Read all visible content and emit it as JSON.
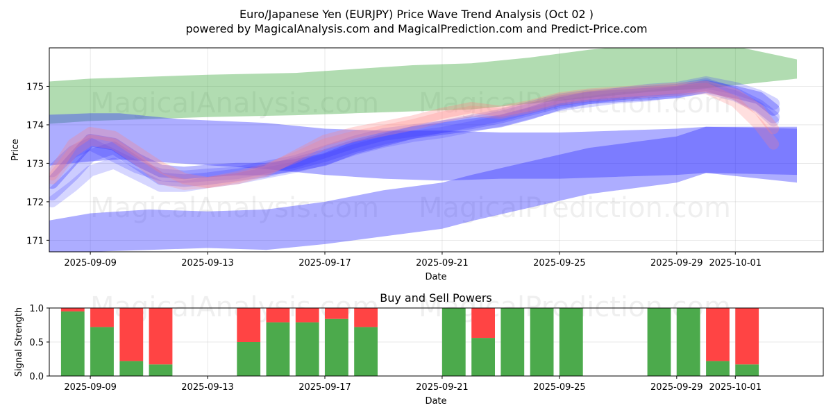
{
  "title_line1": "Euro/Japanese Yen (EURJPY) Price Wave Trend Analysis (Oct 02 )",
  "title_line2": "powered by MagicalAnalysis.com and MagicalPrediction.com and Predict-Price.com",
  "watermarks": [
    "MagicalAnalysis.com",
    "MagicalPrediction.com"
  ],
  "colors": {
    "green": "#2ca02c",
    "blue": "#3333ff",
    "pink": "#ffaaaa",
    "buy": "#4caa4c",
    "sell": "#ff4444"
  },
  "chart_data": [
    {
      "type": "area",
      "title": "",
      "xlabel": "Date",
      "ylabel": "Price",
      "x_range_days": [
        -1.4,
        25.0
      ],
      "ylim": [
        170.7,
        176.0
      ],
      "x_ticks": [
        {
          "day": 0,
          "label": "2025-09-09"
        },
        {
          "day": 4,
          "label": "2025-09-13"
        },
        {
          "day": 8,
          "label": "2025-09-17"
        },
        {
          "day": 12,
          "label": "2025-09-21"
        },
        {
          "day": 16,
          "label": "2025-09-25"
        },
        {
          "day": 20,
          "label": "2025-09-29"
        },
        {
          "day": 22,
          "label": "2025-10-01"
        }
      ],
      "y_ticks": [
        171,
        172,
        173,
        174,
        175
      ],
      "bands": [
        {
          "name": "green-upper-band",
          "color": "#2ca02c",
          "opacity": 0.37,
          "x": [
            -1.9,
            0,
            2,
            4,
            7,
            9,
            11,
            13,
            15,
            17,
            19,
            21,
            24.1
          ],
          "upper": [
            175.1,
            175.2,
            175.25,
            175.3,
            175.35,
            175.45,
            175.55,
            175.6,
            175.75,
            175.95,
            176.1,
            176.2,
            175.7
          ],
          "lower": [
            174.0,
            174.1,
            174.15,
            174.2,
            174.25,
            174.3,
            174.35,
            174.4,
            174.55,
            174.7,
            174.85,
            174.95,
            175.2
          ]
        },
        {
          "name": "blue-middle-band",
          "color": "#3333ff",
          "opacity": 0.4,
          "x": [
            -1.9,
            0,
            1,
            3,
            6,
            8,
            10,
            12,
            14,
            16,
            18,
            20,
            21,
            24.1
          ],
          "upper": [
            174.25,
            174.3,
            174.3,
            174.15,
            174.05,
            173.9,
            173.85,
            173.85,
            173.8,
            173.8,
            173.85,
            173.9,
            173.95,
            173.95
          ],
          "lower": [
            172.9,
            173.05,
            173.1,
            173.0,
            172.85,
            172.7,
            172.6,
            172.55,
            172.6,
            172.6,
            172.65,
            172.7,
            172.75,
            172.7
          ]
        },
        {
          "name": "blue-lower-band",
          "color": "#3333ff",
          "opacity": 0.4,
          "x": [
            -1.9,
            0,
            2,
            4,
            6,
            8,
            10,
            12,
            13,
            15,
            17,
            20,
            21,
            24.1
          ],
          "upper": [
            171.45,
            171.7,
            171.8,
            171.75,
            171.8,
            172.0,
            172.3,
            172.5,
            172.7,
            173.05,
            173.4,
            173.7,
            173.95,
            173.9
          ],
          "lower": [
            170.6,
            170.7,
            170.75,
            170.8,
            170.75,
            170.9,
            171.1,
            171.3,
            171.5,
            171.85,
            172.2,
            172.5,
            172.75,
            172.5
          ]
        }
      ],
      "wave_lines": [
        {
          "name": "blue-wave-main",
          "color": "#3333ff",
          "opacity": 0.35,
          "width": 18,
          "x": [
            -1.3,
            -0.6,
            0,
            0.8,
            1.6,
            2.4,
            3.2,
            4,
            5,
            6,
            7,
            8,
            9,
            10,
            11,
            12,
            13,
            14,
            15,
            16,
            17,
            18,
            19,
            20,
            21,
            22,
            22.8,
            23.3
          ],
          "y": [
            172.5,
            173.1,
            173.6,
            173.5,
            173.1,
            172.8,
            172.75,
            172.8,
            172.85,
            172.85,
            172.95,
            173.1,
            173.4,
            173.6,
            173.8,
            173.9,
            174.0,
            174.1,
            174.3,
            174.55,
            174.7,
            174.75,
            174.8,
            174.85,
            175.0,
            174.85,
            174.7,
            174.4
          ]
        },
        {
          "name": "blue-wave-2",
          "color": "#3333ff",
          "opacity": 0.25,
          "width": 18,
          "x": [
            -1.3,
            -0.6,
            0,
            0.8,
            1.6,
            2.4,
            3.2,
            4,
            5,
            6,
            7,
            8,
            9,
            10,
            11,
            12,
            13,
            14,
            15,
            16,
            17,
            18,
            19,
            20,
            21,
            22,
            22.8,
            23.3
          ],
          "y": [
            172.2,
            172.7,
            173.2,
            173.4,
            173.0,
            172.6,
            172.55,
            172.6,
            172.7,
            172.8,
            173.0,
            173.2,
            173.45,
            173.65,
            173.8,
            173.95,
            174.05,
            174.2,
            174.4,
            174.6,
            174.7,
            174.8,
            174.85,
            174.9,
            175.05,
            174.8,
            174.5,
            174.2
          ]
        },
        {
          "name": "blue-wave-3",
          "color": "#3333ff",
          "opacity": 0.22,
          "width": 18,
          "x": [
            -1.3,
            -0.6,
            0,
            0.8,
            1.6,
            2.4,
            3.2,
            4,
            5,
            6,
            7,
            8,
            9,
            10,
            11,
            12,
            13,
            14,
            15,
            16,
            17,
            18,
            19,
            20,
            21,
            22,
            22.8,
            23.3
          ],
          "y": [
            172.8,
            173.3,
            173.5,
            173.2,
            172.9,
            172.7,
            172.65,
            172.7,
            172.75,
            172.9,
            173.05,
            173.3,
            173.55,
            173.75,
            173.85,
            173.95,
            174.1,
            174.25,
            174.45,
            174.65,
            174.75,
            174.8,
            174.9,
            174.95,
            175.1,
            174.95,
            174.75,
            174.55
          ]
        },
        {
          "name": "blue-wave-4",
          "color": "#3333ff",
          "opacity": 0.2,
          "width": 16,
          "x": [
            -1.3,
            -0.6,
            0,
            0.8,
            1.6,
            2.4,
            3.2,
            4,
            5,
            6,
            7,
            8,
            9,
            10,
            11,
            12,
            13,
            14,
            15,
            16,
            17,
            18,
            19,
            20,
            21,
            22,
            22.8,
            23.3
          ],
          "y": [
            172.0,
            172.4,
            172.8,
            173.0,
            172.7,
            172.4,
            172.4,
            172.5,
            172.6,
            172.75,
            172.9,
            173.1,
            173.35,
            173.55,
            173.7,
            173.8,
            173.95,
            174.1,
            174.3,
            174.5,
            174.6,
            174.7,
            174.75,
            174.85,
            174.95,
            174.75,
            174.45,
            174.1
          ]
        },
        {
          "name": "pink-wave-1",
          "color": "#ff8080",
          "opacity": 0.3,
          "width": 16,
          "x": [
            -1.3,
            -0.6,
            0,
            0.8,
            1.6,
            2.4,
            3.2,
            4,
            5,
            6,
            7,
            8,
            9,
            10,
            11,
            12,
            13,
            14,
            15,
            16,
            17,
            18,
            19,
            20,
            21,
            22,
            22.8,
            23.3
          ],
          "y": [
            172.7,
            173.5,
            173.8,
            173.7,
            173.3,
            172.9,
            172.6,
            172.5,
            172.6,
            172.8,
            173.2,
            173.6,
            173.8,
            173.95,
            174.1,
            174.3,
            174.45,
            174.35,
            174.5,
            174.7,
            174.8,
            174.85,
            174.9,
            174.95,
            175.0,
            174.8,
            174.4,
            173.9
          ]
        },
        {
          "name": "pink-wave-2",
          "color": "#ff8080",
          "opacity": 0.25,
          "width": 16,
          "x": [
            -1.3,
            -0.6,
            0,
            0.8,
            1.6,
            2.4,
            3.2,
            4,
            5,
            6,
            7,
            8,
            9,
            10,
            11,
            12,
            13,
            14,
            15,
            16,
            17,
            18,
            19,
            20,
            21,
            22,
            22.8,
            23.3
          ],
          "y": [
            172.6,
            173.3,
            173.6,
            173.5,
            173.1,
            172.6,
            172.45,
            172.5,
            172.65,
            172.85,
            173.15,
            173.5,
            173.7,
            173.85,
            174.0,
            174.2,
            174.35,
            174.3,
            174.45,
            174.65,
            174.75,
            174.8,
            174.85,
            174.9,
            174.95,
            174.6,
            174.0,
            173.5
          ]
        }
      ]
    },
    {
      "type": "bar",
      "title": "Buy and Sell Powers",
      "xlabel": "Date",
      "ylabel": "Signal Strength",
      "ylim": [
        0,
        1.0
      ],
      "y_ticks": [
        0.0,
        0.5,
        1.0
      ],
      "y_tick_labels": [
        "0.0",
        "0.5",
        "1.0"
      ],
      "x_ticks": [
        {
          "day": 0,
          "label": "2025-09-09"
        },
        {
          "day": 4,
          "label": "2025-09-13"
        },
        {
          "day": 8,
          "label": "2025-09-17"
        },
        {
          "day": 12,
          "label": "2025-09-21"
        },
        {
          "day": 16,
          "label": "2025-09-25"
        },
        {
          "day": 20,
          "label": "2025-09-29"
        },
        {
          "day": 22,
          "label": "2025-10-01"
        }
      ],
      "x_range_days": [
        -1.4,
        25.0
      ],
      "series": [
        {
          "name": "Buy",
          "color": "#4caa4c",
          "x": [
            -0.6,
            0.4,
            1.4,
            2.4,
            5.4,
            6.4,
            7.4,
            8.4,
            9.4,
            12.4,
            13.4,
            14.4,
            15.4,
            16.4,
            19.4,
            20.4,
            21.4,
            22.4
          ],
          "values": [
            0.95,
            0.72,
            0.22,
            0.17,
            0.5,
            0.79,
            0.79,
            0.84,
            0.72,
            1.0,
            0.56,
            1.0,
            1.0,
            1.0,
            1.0,
            1.0,
            0.22,
            0.17
          ]
        },
        {
          "name": "Sell",
          "color": "#ff4444",
          "x": [
            -0.6,
            0.4,
            1.4,
            2.4,
            5.4,
            6.4,
            7.4,
            8.4,
            9.4,
            12.4,
            13.4,
            14.4,
            15.4,
            16.4,
            19.4,
            20.4,
            21.4,
            22.4
          ],
          "values": [
            0.05,
            0.28,
            0.78,
            0.83,
            0.5,
            0.21,
            0.21,
            0.16,
            0.28,
            0.0,
            0.44,
            0.0,
            0.0,
            0.0,
            0.0,
            0.0,
            0.78,
            0.83
          ]
        }
      ]
    }
  ]
}
